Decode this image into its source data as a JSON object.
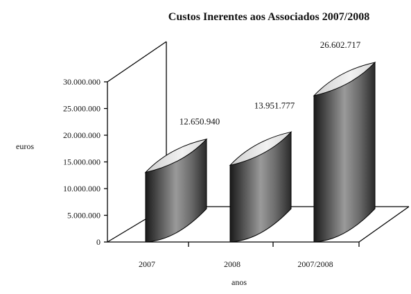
{
  "chart_data": {
    "type": "bar",
    "title": "Custos Inerentes aos Associados 2007/2008",
    "xlabel": "anos",
    "ylabel": "euros",
    "categories": [
      "2007",
      "2008",
      "2007/2008"
    ],
    "values": [
      12650940,
      13951777,
      26602717
    ],
    "value_labels": [
      "12.650.940",
      "13.951.777",
      "26.602.717"
    ],
    "ylim": [
      0,
      30000000
    ],
    "y_ticks": [
      {
        "value": 0,
        "label": "0"
      },
      {
        "value": 5000000,
        "label": "5.000.000"
      },
      {
        "value": 10000000,
        "label": "10.000.000"
      },
      {
        "value": 15000000,
        "label": "15.000.000"
      },
      {
        "value": 20000000,
        "label": "20.000.000"
      },
      {
        "value": 25000000,
        "label": "25.000.000"
      },
      {
        "value": 30000000,
        "label": "30.000.000"
      }
    ],
    "grid": false,
    "legend": "none",
    "style": "3d-cylinder"
  }
}
